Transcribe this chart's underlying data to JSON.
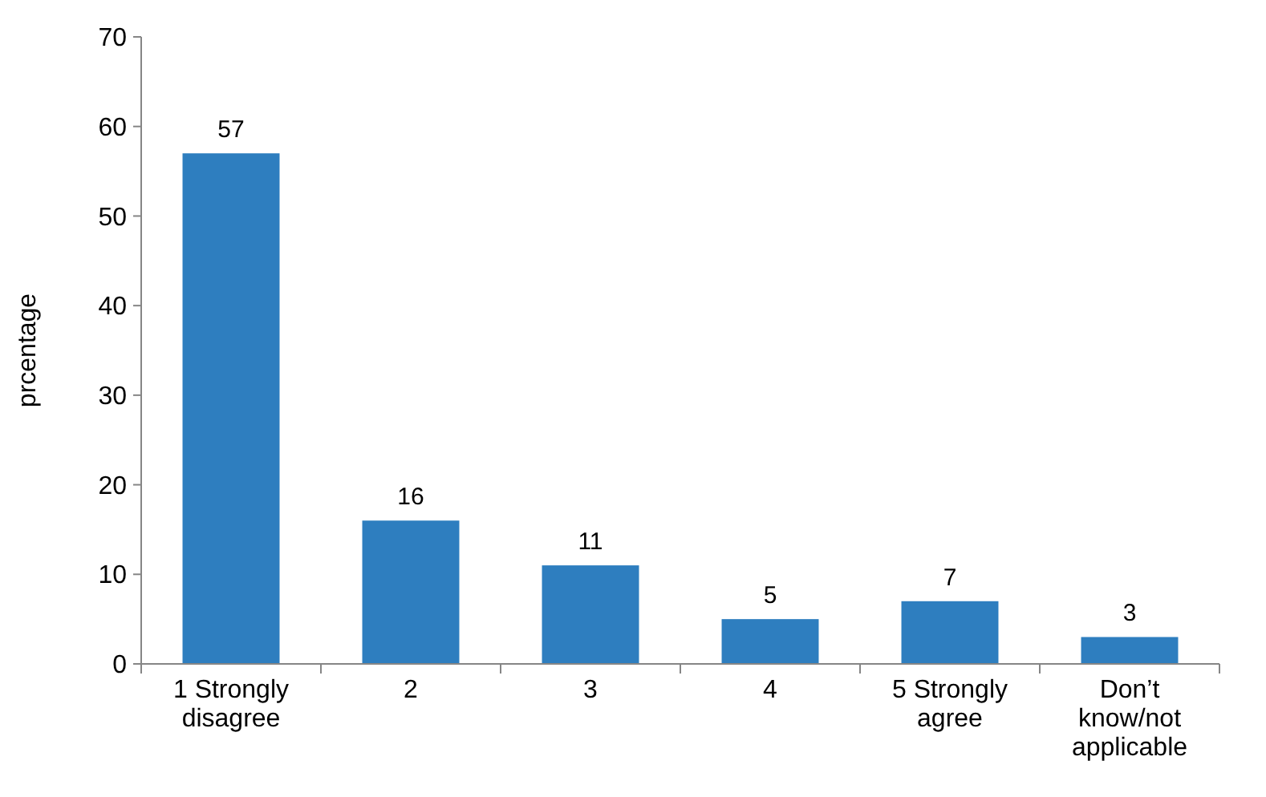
{
  "chart_data": {
    "type": "bar",
    "ylabel": "prcentage",
    "categories": [
      "1 Strongly disagree",
      "2",
      "3",
      "4",
      "5 Strongly agree",
      "Don’t know/not applicable"
    ],
    "values": [
      57,
      16,
      11,
      5,
      7,
      3
    ],
    "color": "#2e7ebf",
    "data_labels": true,
    "ylim": [
      0,
      70
    ],
    "yticks": [
      0,
      10,
      20,
      30,
      40,
      50,
      60,
      70
    ],
    "grid": false
  }
}
